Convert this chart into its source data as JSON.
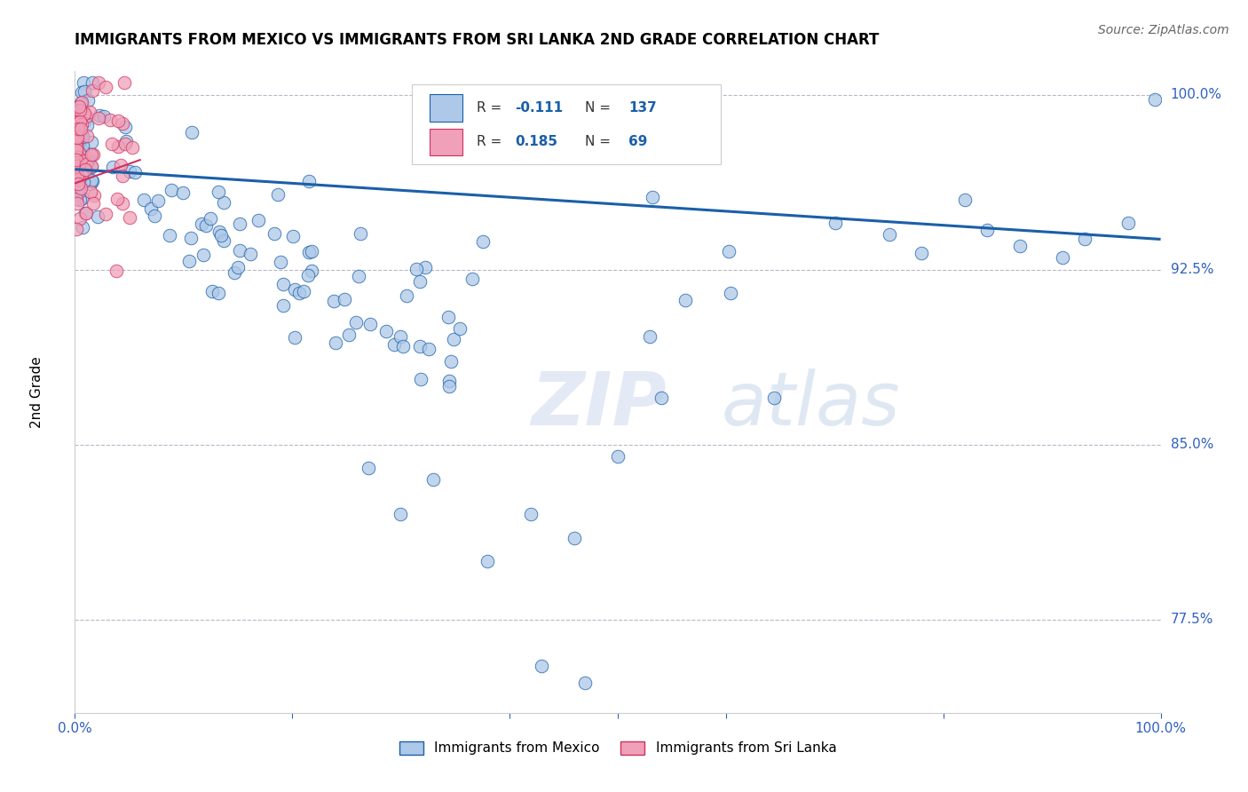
{
  "title": "IMMIGRANTS FROM MEXICO VS IMMIGRANTS FROM SRI LANKA 2ND GRADE CORRELATION CHART",
  "source": "Source: ZipAtlas.com",
  "xlabel_mexico": "Immigrants from Mexico",
  "xlabel_srilanka": "Immigrants from Sri Lanka",
  "ylabel": "2nd Grade",
  "r_mexico": -0.111,
  "n_mexico": 137,
  "r_srilanka": 0.185,
  "n_srilanka": 69,
  "xlim": [
    0.0,
    1.0
  ],
  "ylim": [
    0.735,
    1.01
  ],
  "yticks": [
    0.775,
    0.85,
    0.925,
    1.0
  ],
  "ytick_labels": [
    "77.5%",
    "85.0%",
    "92.5%",
    "100.0%"
  ],
  "color_mexico": "#adc8e8",
  "color_srilanka": "#f0a0b8",
  "color_trend_mexico": "#1a5fa8",
  "color_trend_srilanka": "#d03060",
  "color_axis_labels": "#3060c0",
  "watermark_zip": "ZIP",
  "watermark_atlas": "atlas",
  "background_color": "#ffffff"
}
